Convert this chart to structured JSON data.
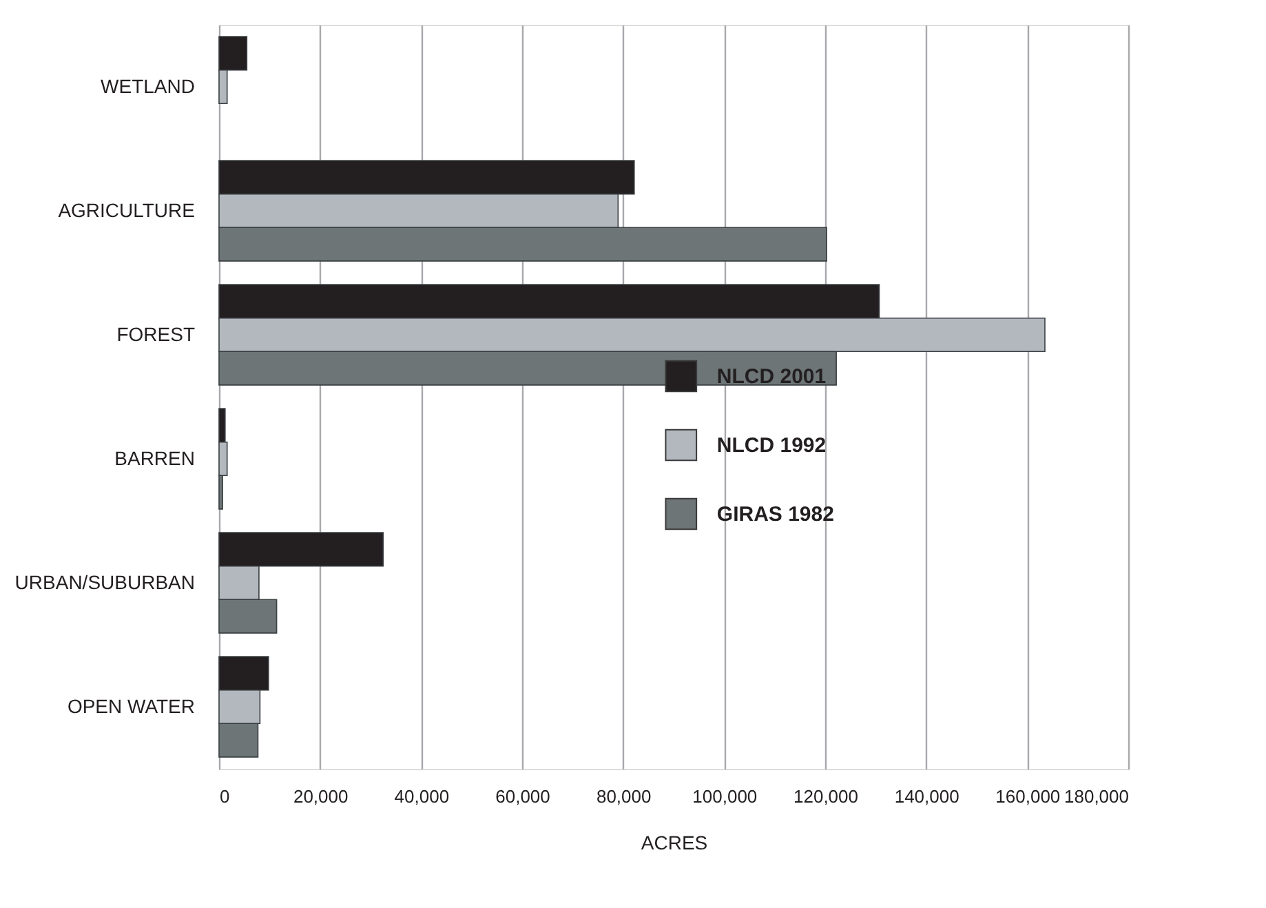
{
  "chart_data": {
    "type": "bar",
    "orientation": "horizontal",
    "categories": [
      "WETLAND",
      "AGRICULTURE",
      "FOREST",
      "BARREN",
      "URBAN/SUBURBAN",
      "OPEN WATER"
    ],
    "series": [
      {
        "name": "NLCD 2001",
        "color": "#231f20",
        "values": [
          5500,
          82200,
          130700,
          1200,
          32500,
          9800
        ]
      },
      {
        "name": "NLCD 1992",
        "color": "#b3b8bf",
        "values": [
          1600,
          79000,
          163500,
          1600,
          7900,
          8100
        ]
      },
      {
        "name": "GIRAS 1982",
        "color": "#6d7576",
        "values": [
          null,
          120300,
          122200,
          700,
          11400,
          7700
        ]
      }
    ],
    "xlabel": "ACRES",
    "xlim": [
      0,
      180000
    ],
    "xticks": [
      0,
      {
        "value": 20000,
        "label": "20,000"
      },
      {
        "value": 40000,
        "label": "40,000"
      },
      {
        "value": 60000,
        "label": "60,000"
      },
      {
        "value": 80000,
        "label": "80,000"
      },
      {
        "value": 100000,
        "label": "100,000"
      },
      {
        "value": 120000,
        "label": "120,000"
      },
      {
        "value": 140000,
        "label": "140,000"
      },
      {
        "value": 160000,
        "label": "160,000"
      },
      {
        "value": 180000,
        "label": "180,000"
      }
    ],
    "grid": "x",
    "legend": "right"
  }
}
